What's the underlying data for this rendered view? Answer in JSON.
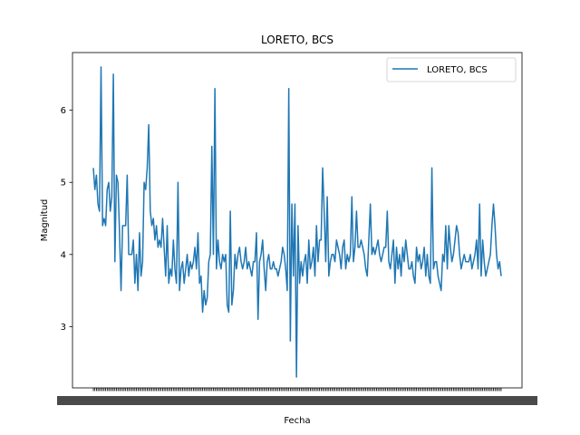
{
  "chart_data": {
    "type": "line",
    "title": "LORETO, BCS",
    "xlabel": "Fecha",
    "ylabel": "Magnitud",
    "ylim": [
      2.15,
      6.8
    ],
    "yticks": [
      3,
      4,
      5,
      6
    ],
    "grid": false,
    "legend": "top-right",
    "x_tick_labels": "unreadable (dense overlapping date labels)",
    "series": [
      {
        "name": "LORETO, BCS",
        "color": "#1f77b4",
        "values": [
          5.2,
          4.9,
          5.1,
          4.7,
          4.6,
          6.6,
          4.4,
          4.5,
          4.4,
          4.9,
          5.0,
          4.6,
          4.8,
          6.5,
          3.9,
          5.1,
          5.0,
          4.3,
          3.5,
          4.4,
          4.4,
          4.4,
          5.1,
          4.0,
          4.0,
          4.0,
          4.2,
          3.6,
          4.0,
          3.5,
          4.3,
          3.7,
          3.9,
          5.0,
          4.9,
          5.2,
          5.8,
          4.6,
          4.4,
          4.5,
          4.2,
          4.4,
          4.1,
          4.2,
          4.1,
          4.5,
          4.1,
          3.7,
          4.4,
          3.6,
          3.8,
          3.7,
          4.2,
          3.8,
          3.6,
          5.0,
          3.5,
          3.8,
          3.9,
          3.6,
          3.8,
          4.0,
          3.7,
          3.9,
          3.8,
          3.9,
          4.1,
          3.8,
          4.3,
          3.6,
          3.7,
          3.2,
          3.5,
          3.3,
          3.4,
          3.9,
          4.0,
          5.5,
          4.0,
          6.3,
          3.8,
          4.2,
          3.9,
          3.8,
          4.0,
          3.9,
          4.0,
          3.3,
          3.2,
          4.6,
          3.3,
          3.5,
          4.0,
          3.8,
          4.0,
          4.1,
          3.9,
          3.8,
          3.9,
          4.1,
          3.8,
          3.9,
          3.8,
          3.7,
          3.9,
          3.9,
          4.3,
          3.1,
          3.9,
          4.0,
          4.2,
          3.8,
          3.5,
          3.9,
          4.0,
          3.8,
          3.8,
          3.9,
          3.8,
          3.8,
          3.7,
          3.8,
          3.9,
          4.1,
          4.0,
          3.8,
          3.5,
          6.3,
          2.8,
          4.7,
          3.7,
          4.7,
          2.3,
          4.4,
          3.6,
          3.9,
          3.7,
          3.9,
          4.0,
          3.6,
          4.2,
          3.8,
          3.9,
          4.1,
          3.7,
          4.4,
          3.9,
          4.2,
          4.2,
          5.2,
          4.6,
          3.9,
          4.8,
          3.7,
          3.9,
          4.0,
          4.0,
          3.9,
          4.2,
          4.1,
          4.0,
          3.8,
          4.1,
          4.2,
          3.8,
          4.0,
          3.9,
          4.0,
          4.8,
          3.9,
          4.1,
          4.6,
          4.1,
          4.1,
          4.2,
          4.1,
          4.0,
          3.8,
          3.7,
          4.2,
          4.7,
          4.0,
          4.1,
          4.0,
          4.1,
          4.2,
          4.0,
          3.9,
          4.0,
          4.1,
          4.1,
          4.6,
          3.9,
          3.8,
          4.0,
          4.2,
          3.6,
          4.1,
          3.8,
          4.0,
          3.7,
          4.1,
          3.9,
          4.2,
          4.0,
          3.8,
          3.8,
          3.9,
          3.7,
          3.6,
          4.1,
          3.9,
          4.0,
          3.8,
          3.9,
          4.1,
          3.7,
          4.0,
          3.7,
          3.6,
          5.2,
          3.8,
          3.9,
          3.9,
          3.7,
          3.6,
          3.5,
          4.0,
          3.9,
          4.4,
          3.8,
          4.4,
          4.1,
          3.9,
          4.0,
          4.2,
          4.4,
          4.3,
          4.0,
          3.8,
          3.9,
          4.0,
          3.9,
          3.9,
          3.9,
          4.0,
          3.8,
          3.9,
          4.0,
          4.2,
          3.8,
          4.7,
          3.7,
          4.2,
          3.9,
          3.7,
          3.8,
          3.9,
          4.0,
          4.4,
          4.7,
          4.4,
          4.0,
          3.8,
          3.9,
          3.7
        ]
      }
    ]
  }
}
